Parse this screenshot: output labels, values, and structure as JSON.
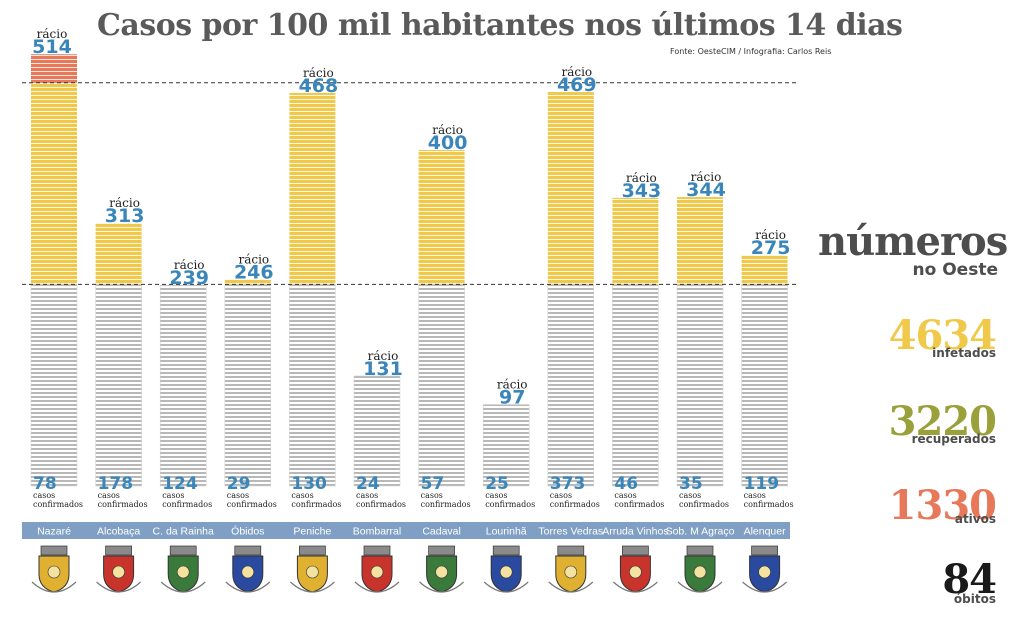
{
  "header": {
    "title": "Casos por 100 mil habitantes nos últimos 14 dias",
    "source": "Fonte: OesteCIM / Infografia: Carlos Reis"
  },
  "colors": {
    "yellow": "#f0c84a",
    "gray": "#b8b8b8",
    "red": "#e8785a",
    "blue": "#3a86ba",
    "band": "#7f9fc4",
    "olive": "#9aa03a",
    "dark": "#4d4d4d"
  },
  "chart_data": {
    "type": "bar",
    "title": "Casos por 100 mil habitantes nos últimos 14 dias",
    "categories": [
      "Nazaré",
      "Alcobaça",
      "C. da Rainha",
      "Óbidos",
      "Peniche",
      "Bombarral",
      "Cadaval",
      "Lourinhã",
      "Torres Vedras",
      "Arruda Vinhos",
      "Sob. M Agraço",
      "Alenquer"
    ],
    "ratio_label": "rácio",
    "ratio_values": [
      514,
      313,
      239,
      246,
      468,
      131,
      400,
      97,
      469,
      343,
      344,
      275
    ],
    "confirmed_label": "casos confirmados",
    "confirmed_values": [
      78,
      178,
      124,
      29,
      130,
      24,
      57,
      25,
      373,
      46,
      35,
      119
    ],
    "reference_lines": [
      240,
      480
    ],
    "crests": [
      "Nazaré crest",
      "Alcobaça crest",
      "C. da Rainha crest",
      "Óbidos crest",
      "Peniche crest",
      "Bombarral crest",
      "Cadaval crest",
      "Lourinhã crest",
      "Torres Vedras crest",
      "Arruda Vinhos crest",
      "Sob. M Agraço crest",
      "Alenquer crest"
    ]
  },
  "summary": {
    "title": "números",
    "subtitle": "no Oeste",
    "stats": [
      {
        "value": "4634",
        "label": "infetados",
        "color": "#f0c84a"
      },
      {
        "value": "3220",
        "label": "recuperados",
        "color": "#9aa03a"
      },
      {
        "value": "1330",
        "label": "ativos",
        "color": "#e8785a"
      },
      {
        "value": "84",
        "label": "óbitos",
        "color": "#1a1a1a"
      }
    ]
  }
}
